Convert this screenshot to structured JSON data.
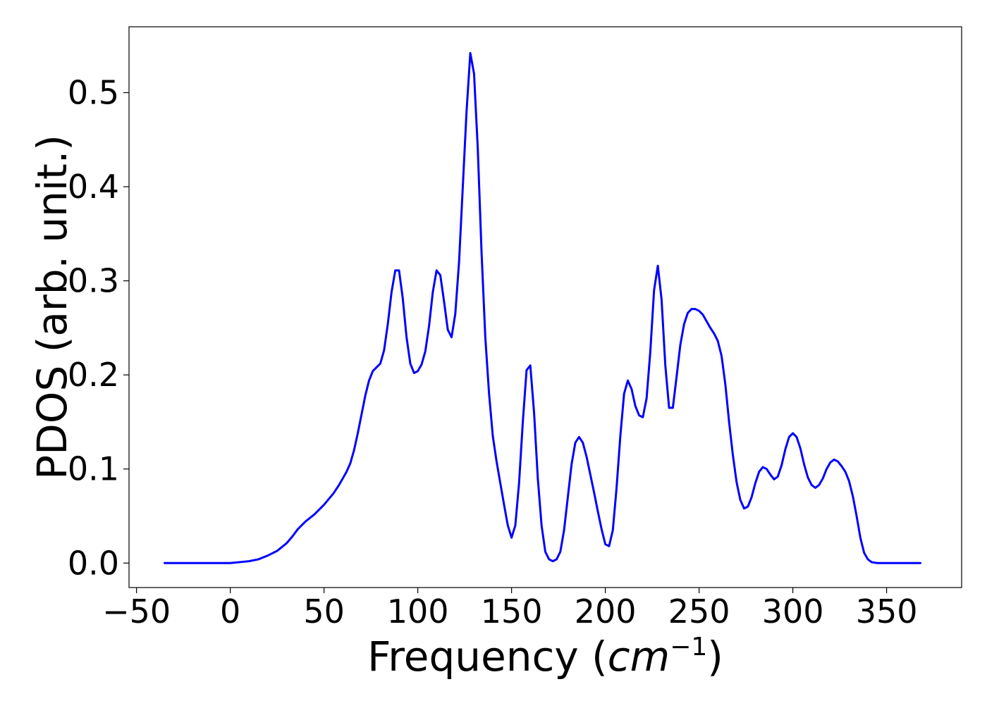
{
  "chart_data": {
    "type": "line",
    "title": "",
    "xlabel": "Frequency",
    "xlabel_unit_base": "cm",
    "xlabel_unit_exp": "−1",
    "ylabel": "PDOS (arb. unit.)",
    "xlim": [
      -54,
      390
    ],
    "ylim": [
      -0.026,
      0.57
    ],
    "xticks": [
      -50,
      0,
      50,
      100,
      150,
      200,
      250,
      300,
      350
    ],
    "xtick_labels": [
      "−50",
      "0",
      "50",
      "100",
      "150",
      "200",
      "250",
      "300",
      "350"
    ],
    "yticks": [
      0.0,
      0.1,
      0.2,
      0.3,
      0.4,
      0.5
    ],
    "ytick_labels": [
      "0.0",
      "0.1",
      "0.2",
      "0.3",
      "0.4",
      "0.5"
    ],
    "grid": false,
    "legend": false,
    "line_color": "#0000ff",
    "series": [
      {
        "x": [
          -35,
          -25,
          -15,
          -5,
          0,
          5,
          10,
          15,
          20,
          25,
          30,
          33,
          36,
          40,
          45,
          50,
          55,
          58,
          60,
          62,
          64,
          66,
          68,
          70,
          72,
          74,
          76,
          78,
          80,
          82,
          84,
          86,
          88,
          90,
          92,
          94,
          96,
          98,
          100,
          102,
          104,
          106,
          108,
          110,
          112,
          114,
          116,
          118,
          120,
          122,
          124,
          126,
          128,
          130,
          132,
          134,
          136,
          138,
          140,
          142,
          144,
          146,
          148,
          150,
          152,
          154,
          156,
          158,
          160,
          162,
          164,
          166,
          168,
          170,
          172,
          174,
          176,
          178,
          180,
          182,
          184,
          186,
          188,
          190,
          192,
          194,
          196,
          198,
          200,
          202,
          204,
          206,
          208,
          210,
          212,
          214,
          216,
          218,
          220,
          222,
          224,
          226,
          228,
          230,
          232,
          234,
          236,
          238,
          240,
          242,
          244,
          246,
          248,
          250,
          252,
          254,
          256,
          258,
          260,
          262,
          264,
          266,
          268,
          270,
          272,
          274,
          276,
          278,
          280,
          282,
          284,
          286,
          288,
          290,
          292,
          294,
          296,
          298,
          300,
          302,
          304,
          306,
          308,
          310,
          312,
          314,
          316,
          318,
          320,
          322,
          324,
          326,
          328,
          330,
          332,
          334,
          336,
          338,
          340,
          342,
          345,
          350,
          355,
          360,
          368
        ],
        "y": [
          0.0,
          0.0,
          0.0,
          0.0,
          0.0,
          0.001,
          0.002,
          0.004,
          0.008,
          0.013,
          0.021,
          0.028,
          0.036,
          0.044,
          0.052,
          0.062,
          0.074,
          0.083,
          0.09,
          0.097,
          0.106,
          0.12,
          0.138,
          0.158,
          0.178,
          0.194,
          0.204,
          0.208,
          0.212,
          0.226,
          0.254,
          0.288,
          0.311,
          0.311,
          0.281,
          0.24,
          0.212,
          0.202,
          0.204,
          0.211,
          0.225,
          0.252,
          0.288,
          0.311,
          0.306,
          0.278,
          0.248,
          0.24,
          0.265,
          0.32,
          0.4,
          0.48,
          0.542,
          0.52,
          0.44,
          0.33,
          0.24,
          0.18,
          0.135,
          0.108,
          0.085,
          0.062,
          0.04,
          0.027,
          0.04,
          0.085,
          0.15,
          0.205,
          0.21,
          0.16,
          0.09,
          0.04,
          0.012,
          0.004,
          0.002,
          0.004,
          0.012,
          0.035,
          0.07,
          0.105,
          0.128,
          0.134,
          0.128,
          0.113,
          0.094,
          0.075,
          0.055,
          0.036,
          0.02,
          0.018,
          0.035,
          0.08,
          0.135,
          0.18,
          0.194,
          0.185,
          0.167,
          0.157,
          0.155,
          0.175,
          0.225,
          0.29,
          0.316,
          0.28,
          0.21,
          0.165,
          0.165,
          0.198,
          0.232,
          0.254,
          0.266,
          0.27,
          0.27,
          0.268,
          0.264,
          0.257,
          0.25,
          0.244,
          0.236,
          0.22,
          0.19,
          0.15,
          0.115,
          0.086,
          0.067,
          0.058,
          0.06,
          0.07,
          0.085,
          0.097,
          0.102,
          0.1,
          0.094,
          0.089,
          0.092,
          0.104,
          0.121,
          0.134,
          0.138,
          0.134,
          0.122,
          0.105,
          0.091,
          0.083,
          0.08,
          0.083,
          0.09,
          0.1,
          0.107,
          0.11,
          0.108,
          0.103,
          0.097,
          0.087,
          0.071,
          0.05,
          0.027,
          0.011,
          0.004,
          0.001,
          0.0,
          0.0,
          0.0,
          0.0,
          0.0
        ]
      }
    ]
  }
}
